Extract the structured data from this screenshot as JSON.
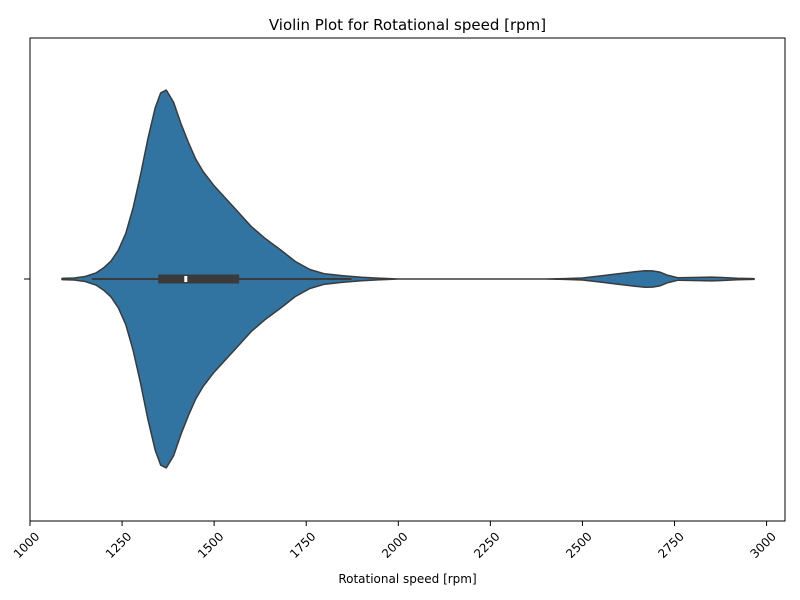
{
  "chart_data": {
    "type": "violin",
    "title": "Violin Plot for Rotational speed [rpm]",
    "xlabel": "Rotational speed [rpm]",
    "ylabel": "",
    "xlim": [
      1000,
      3050
    ],
    "xticks": [
      1000,
      1250,
      1500,
      1750,
      2000,
      2250,
      2500,
      2750,
      3000
    ],
    "xtick_rotation": 45,
    "fill_color": "#3274a1",
    "edge_color": "#3a3a3a",
    "grid": false,
    "density": {
      "x": [
        1087,
        1120,
        1150,
        1180,
        1200,
        1220,
        1240,
        1260,
        1280,
        1300,
        1320,
        1340,
        1355,
        1370,
        1390,
        1410,
        1430,
        1450,
        1470,
        1500,
        1530,
        1560,
        1600,
        1640,
        1680,
        1720,
        1760,
        1800,
        1850,
        1900,
        1950,
        2000,
        2050,
        2100,
        2150,
        2200,
        2300,
        2400,
        2450,
        2500,
        2550,
        2600,
        2640,
        2670,
        2690,
        2710,
        2730,
        2760,
        2800,
        2850,
        2880,
        2920,
        2966
      ],
      "half_width": [
        0.003,
        0.005,
        0.013,
        0.032,
        0.058,
        0.093,
        0.15,
        0.237,
        0.369,
        0.539,
        0.727,
        0.887,
        0.964,
        0.979,
        0.916,
        0.804,
        0.708,
        0.622,
        0.557,
        0.483,
        0.42,
        0.358,
        0.273,
        0.208,
        0.152,
        0.091,
        0.049,
        0.027,
        0.017,
        0.009,
        0.004,
        0.0,
        0.0,
        0.0,
        0.0,
        0.0,
        0.0,
        0.0,
        0.002,
        0.005,
        0.016,
        0.028,
        0.037,
        0.043,
        0.042,
        0.036,
        0.02,
        0.006,
        0.008,
        0.01,
        0.008,
        0.004,
        0.002
      ]
    },
    "box": {
      "whisker_low": 1168,
      "q1": 1348,
      "median": 1423,
      "q3": 1568,
      "whisker_high": 1873,
      "min": 1087,
      "max": 2966
    }
  }
}
